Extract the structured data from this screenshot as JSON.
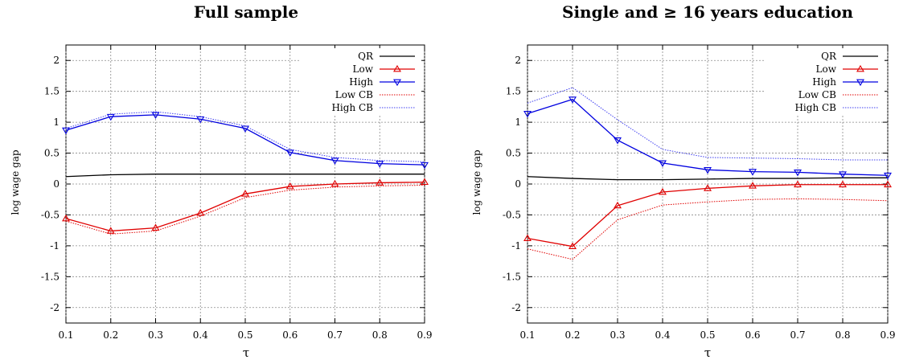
{
  "chart_data": [
    {
      "type": "line",
      "title": "Full sample",
      "xlabel": "τ",
      "ylabel": "log wage gap",
      "xlim": [
        0.1,
        0.9
      ],
      "ylim": [
        -2.25,
        2.25
      ],
      "xticks": [
        "0.1",
        "0.2",
        "0.3",
        "0.4",
        "0.5",
        "0.6",
        "0.7",
        "0.8",
        "0.9"
      ],
      "yticks": [
        "2",
        "1.5",
        "1",
        "0.5",
        "0",
        "-0.5",
        "-1",
        "-1.5",
        "-2"
      ],
      "grid": true,
      "legend_position": "top-right",
      "x": [
        0.1,
        0.2,
        0.3,
        0.4,
        0.5,
        0.6,
        0.7,
        0.8,
        0.9
      ],
      "series": [
        {
          "name": "QR",
          "style": "solid",
          "marker": "none",
          "color": "#000000",
          "values": [
            0.12,
            0.15,
            0.16,
            0.16,
            0.16,
            0.16,
            0.16,
            0.16,
            0.16
          ]
        },
        {
          "name": "Low",
          "style": "solid",
          "marker": "triangle-up",
          "color": "#e00000",
          "values": [
            -0.56,
            -0.76,
            -0.71,
            -0.47,
            -0.16,
            -0.04,
            0.0,
            0.02,
            0.03
          ]
        },
        {
          "name": "High",
          "style": "solid",
          "marker": "triangle-down",
          "color": "#0000e0",
          "values": [
            0.87,
            1.09,
            1.12,
            1.05,
            0.9,
            0.51,
            0.38,
            0.33,
            0.31
          ]
        },
        {
          "name": "Low CB",
          "style": "dotted",
          "marker": "none",
          "color": "#e00000",
          "values": [
            -0.6,
            -0.81,
            -0.76,
            -0.52,
            -0.22,
            -0.1,
            -0.05,
            -0.03,
            -0.02
          ]
        },
        {
          "name": "High CB",
          "style": "dotted",
          "marker": "none",
          "color": "#4040f0",
          "values": [
            0.9,
            1.13,
            1.17,
            1.09,
            0.94,
            0.56,
            0.43,
            0.38,
            0.36
          ]
        }
      ]
    },
    {
      "type": "line",
      "title": "Single and ≥ 16 years education",
      "xlabel": "τ",
      "ylabel": "log wage gap",
      "xlim": [
        0.1,
        0.9
      ],
      "ylim": [
        -2.25,
        2.25
      ],
      "xticks": [
        "0.1",
        "0.2",
        "0.3",
        "0.4",
        "0.5",
        "0.6",
        "0.7",
        "0.8",
        "0.9"
      ],
      "yticks": [
        "2",
        "1.5",
        "1",
        "0.5",
        "0",
        "-0.5",
        "-1",
        "-1.5",
        "-2"
      ],
      "grid": true,
      "legend_position": "top-right",
      "x": [
        0.1,
        0.2,
        0.3,
        0.4,
        0.5,
        0.6,
        0.7,
        0.8,
        0.9
      ],
      "series": [
        {
          "name": "QR",
          "style": "solid",
          "marker": "none",
          "color": "#000000",
          "values": [
            0.12,
            0.09,
            0.07,
            0.07,
            0.08,
            0.09,
            0.09,
            0.1,
            0.1
          ]
        },
        {
          "name": "Low",
          "style": "solid",
          "marker": "triangle-up",
          "color": "#e00000",
          "values": [
            -0.88,
            -1.01,
            -0.35,
            -0.13,
            -0.07,
            -0.03,
            -0.01,
            -0.01,
            -0.01
          ]
        },
        {
          "name": "High",
          "style": "solid",
          "marker": "triangle-down",
          "color": "#0000e0",
          "values": [
            1.14,
            1.37,
            0.71,
            0.34,
            0.23,
            0.2,
            0.19,
            0.16,
            0.14
          ]
        },
        {
          "name": "Low CB",
          "style": "dotted",
          "marker": "none",
          "color": "#e00000",
          "values": [
            -1.05,
            -1.22,
            -0.58,
            -0.34,
            -0.29,
            -0.25,
            -0.24,
            -0.25,
            -0.27
          ]
        },
        {
          "name": "High CB",
          "style": "dotted",
          "marker": "none",
          "color": "#4040f0",
          "values": [
            1.31,
            1.56,
            1.04,
            0.56,
            0.43,
            0.42,
            0.41,
            0.39,
            0.39
          ]
        }
      ]
    }
  ]
}
